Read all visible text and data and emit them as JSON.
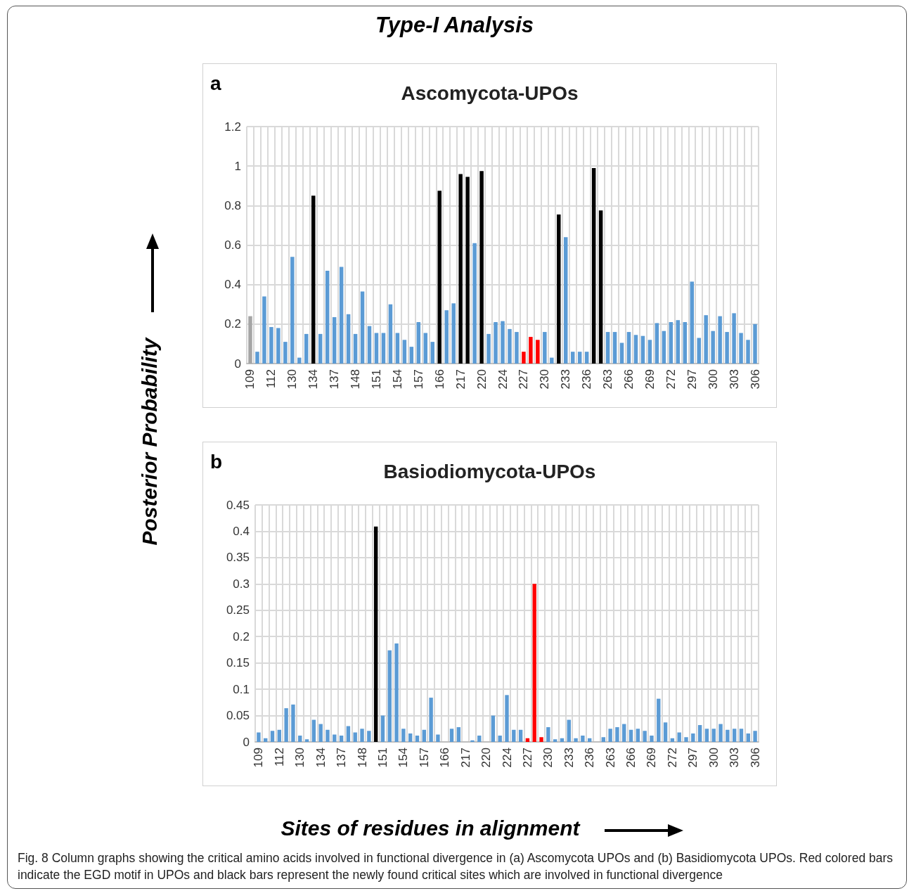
{
  "chart_data": [
    {
      "type": "other",
      "title": "Type-I Analysis"
    },
    {
      "type": "bar",
      "title": "Ascomycota-UPOs",
      "annotations": [
        "a"
      ],
      "ylabel": "Posterior Probability",
      "categories": [
        "109",
        null,
        null,
        "112",
        null,
        null,
        "130",
        null,
        null,
        "134",
        null,
        null,
        "137",
        null,
        null,
        "148",
        null,
        null,
        "151",
        null,
        null,
        "154",
        null,
        null,
        "157",
        null,
        null,
        "166",
        null,
        null,
        "217",
        null,
        null,
        "220",
        null,
        null,
        "224",
        null,
        null,
        "227",
        null,
        null,
        "230",
        null,
        null,
        "233",
        null,
        null,
        "236",
        null,
        null,
        "263",
        null,
        null,
        "266",
        null,
        null,
        "269",
        null,
        null,
        "272",
        null,
        null,
        "297",
        null,
        null,
        "300",
        null,
        null,
        "303",
        null,
        null,
        "306"
      ],
      "values": [
        0.24,
        0.06,
        0.34,
        0.185,
        0.18,
        0.11,
        0.54,
        0.03,
        0.15,
        0.85,
        0.15,
        0.47,
        0.235,
        0.49,
        0.25,
        0.15,
        0.365,
        0.19,
        0.155,
        0.155,
        0.3,
        0.155,
        0.12,
        0.085,
        0.21,
        0.155,
        0.11,
        0.875,
        0.27,
        0.305,
        0.96,
        0.945,
        0.61,
        0.975,
        0.15,
        0.21,
        0.215,
        0.175,
        0.16,
        0.06,
        0.135,
        0.12,
        0.16,
        0.03,
        0.755,
        0.64,
        0.06,
        0.06,
        0.06,
        0.99,
        0.775,
        0.16,
        0.16,
        0.105,
        0.16,
        0.145,
        0.14,
        0.12,
        0.205,
        0.165,
        0.21,
        0.22,
        0.21,
        0.415,
        0.13,
        0.245,
        0.165,
        0.24,
        0.16,
        0.255,
        0.155,
        0.12,
        0.2
      ],
      "colors": [
        "#a5a5a5",
        "#5b9bd5",
        "#5b9bd5",
        "#5b9bd5",
        "#5b9bd5",
        "#5b9bd5",
        "#5b9bd5",
        "#5b9bd5",
        "#5b9bd5",
        "#000000",
        "#5b9bd5",
        "#5b9bd5",
        "#5b9bd5",
        "#5b9bd5",
        "#5b9bd5",
        "#5b9bd5",
        "#5b9bd5",
        "#5b9bd5",
        "#5b9bd5",
        "#5b9bd5",
        "#5b9bd5",
        "#5b9bd5",
        "#5b9bd5",
        "#5b9bd5",
        "#5b9bd5",
        "#5b9bd5",
        "#5b9bd5",
        "#000000",
        "#5b9bd5",
        "#5b9bd5",
        "#000000",
        "#000000",
        "#5b9bd5",
        "#000000",
        "#5b9bd5",
        "#5b9bd5",
        "#5b9bd5",
        "#5b9bd5",
        "#5b9bd5",
        "#ff0000",
        "#ff0000",
        "#ff0000",
        "#5b9bd5",
        "#5b9bd5",
        "#000000",
        "#5b9bd5",
        "#5b9bd5",
        "#5b9bd5",
        "#5b9bd5",
        "#000000",
        "#000000",
        "#5b9bd5",
        "#5b9bd5",
        "#5b9bd5",
        "#5b9bd5",
        "#5b9bd5",
        "#5b9bd5",
        "#5b9bd5",
        "#5b9bd5",
        "#5b9bd5",
        "#5b9bd5",
        "#5b9bd5",
        "#5b9bd5",
        "#5b9bd5",
        "#5b9bd5",
        "#5b9bd5",
        "#5b9bd5",
        "#5b9bd5",
        "#5b9bd5",
        "#5b9bd5",
        "#5b9bd5",
        "#5b9bd5",
        "#5b9bd5"
      ],
      "ylim": [
        0,
        1.2
      ],
      "yticks": [
        0,
        0.2,
        0.4,
        0.6,
        0.8,
        1,
        1.2
      ],
      "grid": true
    },
    {
      "type": "bar",
      "title": "Basiodiomycota-UPOs",
      "annotations": [
        "b",
        "Fig. 8 Column graphs showing the critical amino acids involved in functional divergence in (a) Ascomycota UPOs and (b) Basidiomycota UPOs. Red colored bars indicate the EGD motif in UPOs and black bars represent the newly found critical sites which are involved in functional divergence"
      ],
      "xlabel": "Sites of residues in alignment",
      "categories": [
        "109",
        null,
        null,
        "112",
        null,
        null,
        "130",
        null,
        null,
        "134",
        null,
        null,
        "137",
        null,
        null,
        "148",
        null,
        null,
        "151",
        null,
        null,
        "154",
        null,
        null,
        "157",
        null,
        null,
        "166",
        null,
        null,
        "217",
        null,
        null,
        "220",
        null,
        null,
        "224",
        null,
        null,
        "227",
        null,
        null,
        "230",
        null,
        null,
        "233",
        null,
        null,
        "236",
        null,
        null,
        "263",
        null,
        null,
        "266",
        null,
        null,
        "269",
        null,
        null,
        "272",
        null,
        null,
        "297",
        null,
        null,
        "300",
        null,
        null,
        "303",
        null,
        null,
        "306"
      ],
      "values": [
        0.018,
        0.007,
        0.021,
        0.023,
        0.064,
        0.071,
        0.012,
        0.005,
        0.042,
        0.034,
        0.023,
        0.014,
        0.012,
        0.03,
        0.018,
        0.025,
        0.021,
        0.409,
        0.05,
        0.174,
        0.187,
        0.025,
        0.016,
        0.012,
        0.023,
        0.084,
        0.014,
        0,
        0.025,
        0.028,
        0,
        0.003,
        0.012,
        0,
        0.05,
        0.012,
        0.089,
        0.023,
        0.023,
        0.007,
        0.3,
        0.009,
        0.028,
        0.005,
        0.007,
        0.042,
        0.007,
        0.012,
        0.007,
        0,
        0.009,
        0.025,
        0.028,
        0.034,
        0.023,
        0.025,
        0.021,
        0.012,
        0.082,
        0.037,
        0.007,
        0.018,
        0.009,
        0.016,
        0.032,
        0.025,
        0.025,
        0.034,
        0.023,
        0.025,
        0.025,
        0.016,
        0.021
      ],
      "colors": [
        "#5b9bd5",
        "#5b9bd5",
        "#5b9bd5",
        "#5b9bd5",
        "#5b9bd5",
        "#5b9bd5",
        "#5b9bd5",
        "#5b9bd5",
        "#5b9bd5",
        "#5b9bd5",
        "#5b9bd5",
        "#5b9bd5",
        "#5b9bd5",
        "#5b9bd5",
        "#5b9bd5",
        "#5b9bd5",
        "#5b9bd5",
        "#000000",
        "#5b9bd5",
        "#5b9bd5",
        "#5b9bd5",
        "#5b9bd5",
        "#5b9bd5",
        "#5b9bd5",
        "#5b9bd5",
        "#5b9bd5",
        "#5b9bd5",
        "#5b9bd5",
        "#5b9bd5",
        "#5b9bd5",
        "#5b9bd5",
        "#5b9bd5",
        "#5b9bd5",
        "#5b9bd5",
        "#5b9bd5",
        "#5b9bd5",
        "#5b9bd5",
        "#5b9bd5",
        "#5b9bd5",
        "#ff0000",
        "#ff0000",
        "#ff0000",
        "#5b9bd5",
        "#5b9bd5",
        "#5b9bd5",
        "#5b9bd5",
        "#5b9bd5",
        "#5b9bd5",
        "#5b9bd5",
        "#5b9bd5",
        "#5b9bd5",
        "#5b9bd5",
        "#5b9bd5",
        "#5b9bd5",
        "#5b9bd5",
        "#5b9bd5",
        "#5b9bd5",
        "#5b9bd5",
        "#5b9bd5",
        "#5b9bd5",
        "#5b9bd5",
        "#5b9bd5",
        "#5b9bd5",
        "#5b9bd5",
        "#5b9bd5",
        "#5b9bd5",
        "#5b9bd5",
        "#5b9bd5",
        "#5b9bd5",
        "#5b9bd5",
        "#5b9bd5",
        "#5b9bd5",
        "#5b9bd5"
      ],
      "ylim": [
        0,
        0.45
      ],
      "yticks": [
        0,
        0.05,
        0.1,
        0.15,
        0.2,
        0.25,
        0.3,
        0.35,
        0.4,
        0.45
      ],
      "grid": true
    }
  ]
}
